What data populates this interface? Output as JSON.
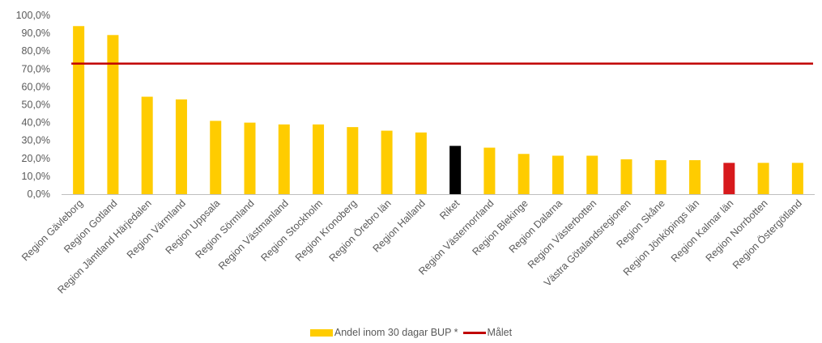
{
  "chart_data": {
    "type": "bar",
    "categories": [
      "Region Gävleborg",
      "Region Gotland",
      "Region Jämtland Härjedalen",
      "Region Värmland",
      "Region Uppsala",
      "Region Sörmland",
      "Region Västmanland",
      "Region Stockholm",
      "Region Kronoberg",
      "Region Örebro län",
      "Region Halland",
      "Riket",
      "Region Västernorrland",
      "Region Blekinge",
      "Region Dalarna",
      "Region Västerbotten",
      "Västra Götalandsregionen",
      "Region Skåne",
      "Region Jönköpings län",
      "Region Kalmar län",
      "Region Norrbotten",
      "Region Östergötland"
    ],
    "series": [
      {
        "name": "Andel inom 30 dagar BUP *",
        "values": [
          94,
          89,
          54.5,
          53,
          41,
          40,
          39,
          39,
          37.5,
          35.5,
          34.5,
          27,
          26,
          22.5,
          21.5,
          21.5,
          19.5,
          19,
          19,
          17.5,
          17.5,
          17.5
        ]
      }
    ],
    "target_line": {
      "name": "Målet",
      "value": 73
    },
    "ylim": [
      0,
      100
    ],
    "yticks": [
      "0,0%",
      "10,0%",
      "20,0%",
      "30,0%",
      "40,0%",
      "50,0%",
      "60,0%",
      "70,0%",
      "80,0%",
      "90,0%",
      "100,0%"
    ],
    "xlabel": "",
    "ylabel": "",
    "title": "",
    "grid": false,
    "legend_position": "bottom",
    "colors": {
      "bar": "#FFCC00",
      "highlight_riket": "#000000",
      "highlight_kalmar": "#D7191C",
      "target": "#C00000",
      "axis": "#BFBFBF"
    }
  },
  "legend": {
    "bar_label": "Andel inom 30 dagar BUP *",
    "line_label": "Målet"
  }
}
